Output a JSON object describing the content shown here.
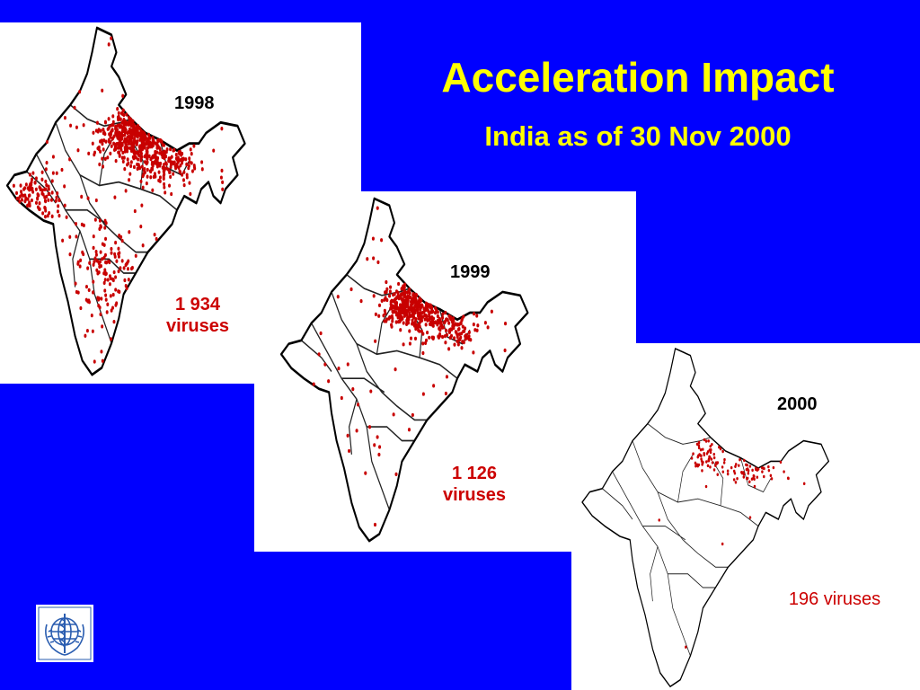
{
  "slide": {
    "title": "Acceleration Impact",
    "subtitle": "India as of 30 Nov 2000",
    "colors": {
      "background": "#0000ff",
      "title": "#ffff00",
      "subtitle": "#ffff00",
      "panel": "#ffffff",
      "dots": "#c80000",
      "count_text": "#cc0000"
    },
    "logo_icon": "who-emblem-icon"
  },
  "maps": [
    {
      "year": "1998",
      "count_line1": "1 934",
      "count_line2": "viruses",
      "virus_count": 1934
    },
    {
      "year": "1999",
      "count_line1": "1 126",
      "count_line2": "viruses",
      "virus_count": 1126
    },
    {
      "year": "2000",
      "count_line1": "196 viruses",
      "count_line2": "",
      "virus_count": 196
    }
  ]
}
